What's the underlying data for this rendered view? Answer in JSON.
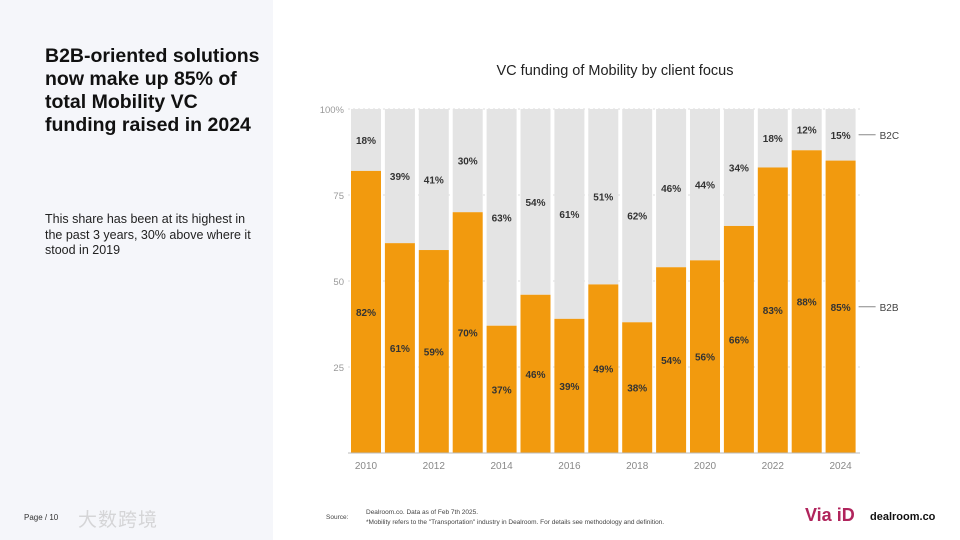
{
  "left_panel": {
    "headline": "B2B-oriented solutions now make up 85% of total Mobility VC funding raised in 2024",
    "subtext": "This share has been at its highest in the past 3 years, 30% above where it stood in 2019",
    "page": "Page / 10",
    "watermark": "大数跨境"
  },
  "footer": {
    "source_label": "Source:",
    "source_line1": "Dealroom.co.  Data as of Feb 7th 2025.",
    "source_line2": "*Mobility refers to the \"Transportation\" industry in Dealroom.  For details see methodology and definition.",
    "logo_via": "Via iD",
    "logo_dealroom": "dealroom.co"
  },
  "colors": {
    "b2b": "#f29a0e",
    "b2c": "#e4e4e4"
  },
  "chart_data": {
    "type": "bar",
    "stacked": true,
    "title": "VC funding of Mobility by client focus",
    "categories": [
      "2010",
      "2011",
      "2012",
      "2013",
      "2014",
      "2015",
      "2016",
      "2017",
      "2018",
      "2019",
      "2020",
      "2021",
      "2022",
      "2023",
      "2024"
    ],
    "x_tick_labels": [
      "2010",
      "2012",
      "2014",
      "2016",
      "2018",
      "2020",
      "2022",
      "2024"
    ],
    "y_ticks": [
      "25",
      "50",
      "75",
      "100%"
    ],
    "ylim": [
      0,
      100
    ],
    "series": [
      {
        "name": "B2B",
        "values": [
          82,
          61,
          59,
          70,
          37,
          46,
          39,
          49,
          38,
          54,
          56,
          66,
          83,
          88,
          85
        ]
      },
      {
        "name": "B2C",
        "values": [
          18,
          39,
          41,
          30,
          63,
          54,
          61,
          51,
          62,
          46,
          44,
          34,
          18,
          12,
          15
        ]
      }
    ],
    "legend": "right"
  }
}
